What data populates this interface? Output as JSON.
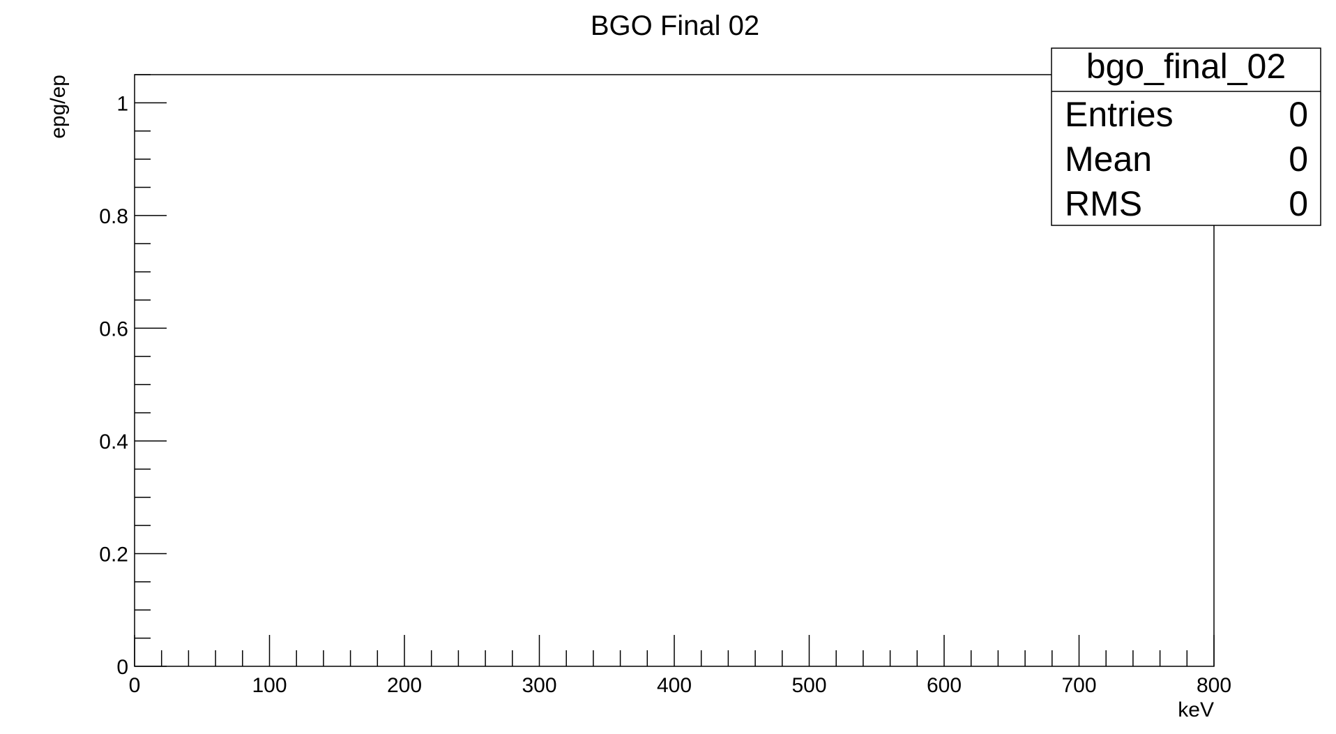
{
  "chart_data": {
    "type": "bar",
    "title": "BGO Final 02",
    "xlabel": "keV",
    "ylabel": "epg/ep",
    "xlim": [
      0,
      800
    ],
    "ylim": [
      0,
      1.05
    ],
    "x_major_ticks": [
      0,
      100,
      200,
      300,
      400,
      500,
      600,
      700,
      800
    ],
    "x_tick_labels": [
      "0",
      "100",
      "200",
      "300",
      "400",
      "500",
      "600",
      "700",
      "800"
    ],
    "x_minor_step": 20,
    "y_major_ticks": [
      0,
      0.2,
      0.4,
      0.6,
      0.8,
      1
    ],
    "y_tick_labels": [
      "0",
      "0.2",
      "0.4",
      "0.6",
      "0.8",
      "1"
    ],
    "y_minor_step": 0.05,
    "grid": false,
    "values": [],
    "stats_box": {
      "placement": "top-right",
      "name": "bgo_final_02",
      "rows": [
        {
          "label": "Entries",
          "value": "0"
        },
        {
          "label": "Mean",
          "value": "0"
        },
        {
          "label": "RMS",
          "value": "0"
        }
      ]
    }
  }
}
